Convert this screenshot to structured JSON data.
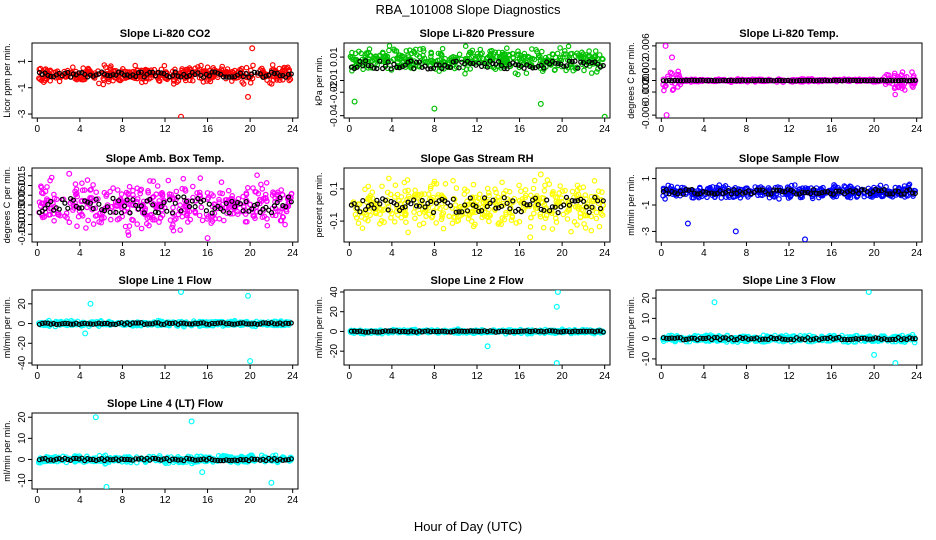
{
  "figure": {
    "title": "RBA_101008  Slope Diagnostics",
    "xlabel": "Hour of Day (UTC)"
  },
  "chart_data": [
    {
      "type": "scatter",
      "title": "Slope Li-820 CO2",
      "ylabel": "Licor ppm per min.",
      "color": "#ff0000",
      "xlim": [
        -0.5,
        24.5
      ],
      "ylim": [
        -3.3,
        2.4
      ],
      "xticks": [
        0,
        4,
        8,
        12,
        16,
        20,
        24
      ],
      "yticks": [
        -3,
        -1,
        1
      ],
      "spread": 0.35,
      "outliers": [
        [
          13.5,
          -3.2
        ],
        [
          19.8,
          -1.7
        ],
        [
          20.2,
          2.0
        ]
      ],
      "seed": 1
    },
    {
      "type": "scatter",
      "title": "Slope Li-820 Pressure",
      "ylabel": "kPa per min.",
      "color": "#00c000",
      "xlim": [
        -0.5,
        24.5
      ],
      "ylim": [
        -0.042,
        0.022
      ],
      "xticks": [
        0,
        4,
        8,
        12,
        16,
        20,
        24
      ],
      "yticks": [
        -0.04,
        -0.02,
        -0.01,
        0.01
      ],
      "spread": 0.006,
      "center": 0.0075,
      "outliers": [
        [
          0.5,
          -0.028
        ],
        [
          8,
          -0.034
        ],
        [
          18,
          -0.03
        ],
        [
          24,
          -0.041
        ]
      ],
      "seed": 2
    },
    {
      "type": "scatter",
      "title": "Slope Li-820 Temp.",
      "ylabel": "degrees C per min.",
      "color": "#ff00ff",
      "xlim": [
        -0.5,
        24.5
      ],
      "ylim": [
        -0.0065,
        0.0065
      ],
      "xticks": [
        0,
        4,
        8,
        12,
        16,
        20,
        24
      ],
      "yticks": [
        -0.006,
        -0.002,
        0.0,
        0.002,
        0.006
      ],
      "spread": 0.0003,
      "outliers": [
        [
          0.4,
          0.006
        ],
        [
          0.5,
          -0.006
        ],
        [
          1,
          0.004
        ]
      ],
      "seed": 3
    },
    {
      "type": "scatter",
      "title": "Slope Amb. Box Temp.",
      "ylabel": "degrees C per min.",
      "color": "#ff00ff",
      "xlim": [
        -0.5,
        24.5
      ],
      "ylim": [
        -0.19,
        0.19
      ],
      "xticks": [
        0,
        4,
        8,
        12,
        16,
        20,
        24
      ],
      "yticks": [
        -0.15,
        -0.1,
        -0.05,
        0.0,
        0.05,
        0.1,
        0.15
      ],
      "spread": 0.07,
      "outliers": [
        [
          16,
          -0.17
        ],
        [
          3,
          0.16
        ]
      ],
      "seed": 4
    },
    {
      "type": "scatter",
      "title": "Slope Gas Stream RH",
      "ylabel": "percent per min.",
      "color": "#ffff00",
      "xlim": [
        -0.5,
        24.5
      ],
      "ylim": [
        -0.23,
        0.23
      ],
      "xticks": [
        0,
        4,
        8,
        12,
        16,
        20,
        24
      ],
      "yticks": [
        -0.1,
        0.1
      ],
      "spread": 0.08,
      "outliers": [
        [
          17,
          -0.2
        ],
        [
          18,
          0.19
        ]
      ],
      "seed": 5
    },
    {
      "type": "scatter",
      "title": "Slope Sample Flow",
      "ylabel": "ml/min per min.",
      "color": "#0000ff",
      "xlim": [
        -0.5,
        24.5
      ],
      "ylim": [
        -3.8,
        1.8
      ],
      "xticks": [
        0,
        4,
        8,
        12,
        16,
        20,
        24
      ],
      "yticks": [
        -3,
        -1,
        1
      ],
      "spread": 0.3,
      "outliers": [
        [
          13.5,
          -3.6
        ],
        [
          7,
          -3
        ],
        [
          2.5,
          -2.4
        ]
      ],
      "seed": 6
    },
    {
      "type": "scatter",
      "title": "Slope Line 1 Flow",
      "ylabel": "ml/min per min.",
      "color": "#00ffff",
      "xlim": [
        -0.5,
        24.5
      ],
      "ylim": [
        -42,
        34
      ],
      "xticks": [
        0,
        4,
        8,
        12,
        16,
        20,
        24
      ],
      "yticks": [
        -40,
        -20,
        0,
        20
      ],
      "spread": 1.5,
      "outliers": [
        [
          5,
          20
        ],
        [
          13.5,
          32
        ],
        [
          19.8,
          28
        ],
        [
          20,
          -38
        ],
        [
          4.5,
          -10
        ]
      ],
      "seed": 7
    },
    {
      "type": "scatter",
      "title": "Slope Line 2 Flow",
      "ylabel": "ml/min per min.",
      "color": "#00ffff",
      "xlim": [
        -0.5,
        24.5
      ],
      "ylim": [
        -34,
        42
      ],
      "xticks": [
        0,
        4,
        8,
        12,
        16,
        20,
        24
      ],
      "yticks": [
        -20,
        0,
        20,
        40
      ],
      "spread": 1.2,
      "outliers": [
        [
          19.6,
          40
        ],
        [
          19.5,
          -32
        ],
        [
          19.5,
          25
        ],
        [
          13,
          -15
        ]
      ],
      "seed": 8
    },
    {
      "type": "scatter",
      "title": "Slope Line 3 Flow",
      "ylabel": "ml/min per min.",
      "color": "#00ffff",
      "xlim": [
        -0.5,
        24.5
      ],
      "ylim": [
        -13,
        24
      ],
      "xticks": [
        0,
        4,
        8,
        12,
        16,
        20,
        24
      ],
      "yticks": [
        -10,
        0,
        10,
        20
      ],
      "spread": 1.0,
      "outliers": [
        [
          19.5,
          23
        ],
        [
          5,
          18
        ],
        [
          22,
          -12
        ],
        [
          20,
          -8
        ]
      ],
      "seed": 9
    },
    {
      "type": "scatter",
      "title": "Slope Line 4 (LT) Flow",
      "ylabel": "ml/min per min.",
      "color": "#00ffff",
      "xlim": [
        -0.5,
        24.5
      ],
      "ylim": [
        -14,
        22
      ],
      "xticks": [
        0,
        4,
        8,
        12,
        16,
        20,
        24
      ],
      "yticks": [
        -10,
        0,
        10,
        20
      ],
      "spread": 1.0,
      "outliers": [
        [
          5.5,
          20
        ],
        [
          14.5,
          18
        ],
        [
          6.5,
          -13
        ],
        [
          22,
          -11
        ],
        [
          15.5,
          -6
        ]
      ],
      "seed": 10
    }
  ]
}
